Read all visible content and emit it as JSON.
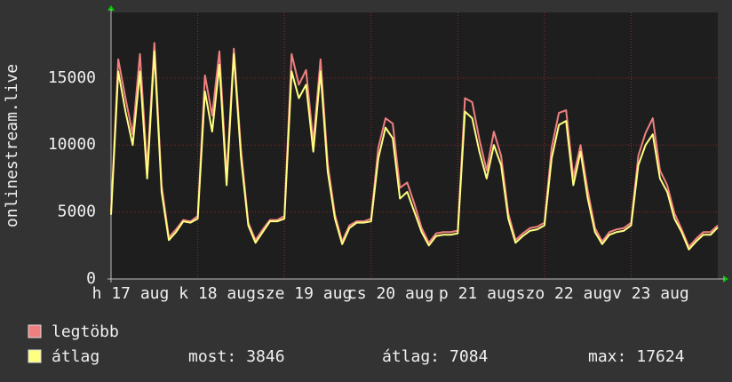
{
  "chart_data": {
    "type": "line",
    "y_label": "onlinestream.live",
    "x": [
      0,
      2,
      4,
      6,
      8,
      10,
      12,
      14,
      16,
      18,
      20,
      22,
      24,
      26,
      28,
      30,
      32,
      34,
      36,
      38,
      40,
      42,
      44,
      46,
      48,
      50,
      52,
      54,
      56,
      58,
      60,
      62,
      64,
      66,
      68,
      70,
      72,
      74,
      76,
      78,
      80,
      82,
      84,
      86,
      88,
      90,
      92,
      94,
      96,
      98,
      100,
      102,
      104,
      106,
      108,
      110,
      112,
      114,
      116,
      118,
      120,
      122,
      124,
      126,
      128,
      130,
      132,
      134,
      136,
      138,
      140,
      142,
      144,
      146,
      148,
      150,
      152,
      154,
      156,
      158,
      160,
      162,
      164,
      166,
      168
    ],
    "xlim": [
      0,
      168
    ],
    "xticks": [
      {
        "value": 0,
        "label": "h 17 aug"
      },
      {
        "value": 24,
        "label": "k 18 aug"
      },
      {
        "value": 48,
        "label": "sze 19 aug"
      },
      {
        "value": 72,
        "label": "cs 20 aug"
      },
      {
        "value": 96,
        "label": "p 21 aug"
      },
      {
        "value": 120,
        "label": "szo 22 aug"
      },
      {
        "value": 144,
        "label": "v 23 aug"
      }
    ],
    "ylim": [
      0,
      19900
    ],
    "yticks": [
      0,
      5000,
      10000,
      15000
    ],
    "grid": true,
    "series": [
      {
        "name": "legtöbb",
        "color": "#f08080",
        "values": [
          5000,
          16400,
          13500,
          10800,
          16800,
          8200,
          17624,
          7000,
          3100,
          3700,
          4400,
          4300,
          4700,
          15200,
          12200,
          17000,
          7600,
          17200,
          9600,
          4200,
          2900,
          3700,
          4400,
          4400,
          4700,
          16800,
          14500,
          15600,
          10200,
          16400,
          8600,
          4800,
          2800,
          4000,
          4300,
          4300,
          4500,
          9800,
          12000,
          11600,
          6800,
          7200,
          5600,
          3800,
          2700,
          3400,
          3500,
          3500,
          3600,
          13500,
          13200,
          10400,
          8100,
          11000,
          9200,
          4900,
          2900,
          3400,
          3800,
          3900,
          4200,
          9800,
          12400,
          12600,
          7600,
          10000,
          6600,
          3800,
          2800,
          3500,
          3700,
          3800,
          4200,
          9200,
          10900,
          12000,
          8100,
          7000,
          4900,
          3700,
          2400,
          3000,
          3500,
          3500,
          4000
        ]
      },
      {
        "name": "átlag",
        "color": "#ffff80",
        "values": [
          4800,
          15500,
          12500,
          10000,
          15500,
          7500,
          17000,
          6500,
          2900,
          3500,
          4300,
          4200,
          4500,
          14000,
          11000,
          16000,
          7000,
          16800,
          9000,
          4000,
          2700,
          3500,
          4300,
          4300,
          4500,
          15500,
          13500,
          14500,
          9500,
          15500,
          8000,
          4500,
          2600,
          3800,
          4200,
          4200,
          4300,
          9000,
          11300,
          10500,
          6000,
          6500,
          5000,
          3500,
          2500,
          3200,
          3300,
          3300,
          3400,
          12500,
          12000,
          9500,
          7500,
          10000,
          8500,
          4500,
          2700,
          3200,
          3600,
          3700,
          4000,
          9000,
          11500,
          11800,
          7000,
          9500,
          6000,
          3500,
          2600,
          3300,
          3500,
          3600,
          4000,
          8500,
          10000,
          10800,
          7500,
          6500,
          4500,
          3500,
          2200,
          2800,
          3300,
          3300,
          3846
        ]
      }
    ],
    "stats": [
      {
        "label": "most:",
        "value": 3846
      },
      {
        "label": "átlag:",
        "value": 7084
      },
      {
        "label": "max:",
        "value": 17624
      }
    ]
  }
}
